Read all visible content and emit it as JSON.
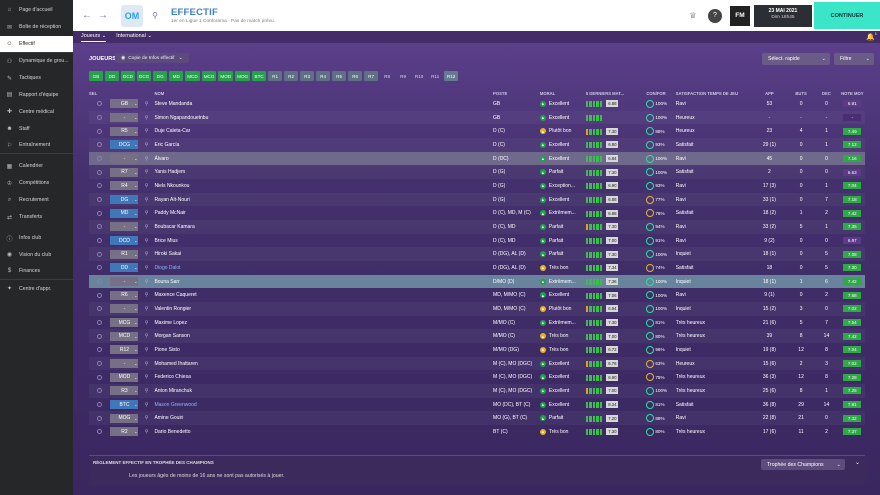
{
  "sidebar": {
    "items": [
      {
        "label": "Page d'accueil",
        "icon": "home-icon"
      },
      {
        "label": "Boîte de réception",
        "icon": "inbox-icon"
      },
      {
        "label": "Effectif",
        "icon": "squad-icon",
        "active": true
      },
      {
        "label": "Dynamique de grou...",
        "icon": "dynamics-icon"
      },
      {
        "label": "Tactiques",
        "icon": "tactics-icon"
      },
      {
        "label": "Rapport d'équipe",
        "icon": "report-icon"
      },
      {
        "label": "Centre médical",
        "icon": "medical-icon"
      },
      {
        "label": "Staff",
        "icon": "staff-icon"
      },
      {
        "label": "Entraînement",
        "icon": "training-icon"
      },
      {
        "label": "Calendrier",
        "icon": "calendar-icon"
      },
      {
        "label": "Compétitions",
        "icon": "trophy-icon"
      },
      {
        "label": "Recrutement",
        "icon": "scouting-icon"
      },
      {
        "label": "Transferts",
        "icon": "transfer-icon"
      },
      {
        "label": "Infos club",
        "icon": "club-info-icon"
      },
      {
        "label": "Vision du club",
        "icon": "vision-icon"
      },
      {
        "label": "Finances",
        "icon": "finance-icon"
      },
      {
        "label": "Centre d'appr.",
        "icon": "development-icon"
      }
    ]
  },
  "header": {
    "title": "EFFECTIF",
    "subtitle": "1er en Ligue 1 Conforama - Pas de match prévu.",
    "club_badge": "OM",
    "fm_logo": "FM",
    "date": "23 MAI 2021",
    "time": "Dim 18h45",
    "continue": "CONTINUER"
  },
  "tabs": [
    {
      "label": "Joueurs",
      "active": true
    },
    {
      "label": "International",
      "active": false
    }
  ],
  "notifications": {
    "count": "1"
  },
  "toolbar": {
    "players_label": "JOUEURS",
    "copy_label": "Copie de Infos effectif",
    "quick_select": "Sélect. rapide",
    "filter": "Filtre"
  },
  "position_filters": [
    "GB",
    "DD",
    "DCD",
    "DCG",
    "DG",
    "MD",
    "MCD",
    "MCG",
    "MOD",
    "MOG",
    "BTC",
    "R1",
    "R2",
    "R3",
    "R4",
    "R5",
    "R6",
    "R7",
    "R8",
    "R9",
    "R10",
    "R11",
    "R12"
  ],
  "columns": {
    "sel": "SEL",
    "nom": "NOM",
    "poste": "POSTE",
    "moral": "MORAL",
    "form": "5 DERNIERS MAT...",
    "cond": "CON/FOR",
    "sat": "SATISFACTION TEMPS DE JEU",
    "app": "APP",
    "buts": "BUTS",
    "dec": "DEC",
    "note": "NOTE MOY"
  },
  "players": [
    {
      "pos": "GB",
      "name": "Steve Mandanda",
      "poste": "GB",
      "moral": "Excellent",
      "form": "6.88",
      "cond": "100%",
      "sat": "Ravi",
      "app": "53",
      "buts": "0",
      "dec": "0",
      "note": "6.91"
    },
    {
      "pos": "-",
      "name": "Simon Ngapandouetnbu",
      "poste": "GB",
      "moral": "Excellent",
      "form": "",
      "cond": "100%",
      "sat": "Heureux",
      "app": "-",
      "buts": "-",
      "dec": "-",
      "note": "-"
    },
    {
      "pos": "R5",
      "name": "Duje Caleta-Car",
      "poste": "D (C)",
      "moral": "Plutôt bon",
      "form": "7.30",
      "cond": "88%",
      "sat": "Heureux",
      "app": "23",
      "buts": "4",
      "dec": "1",
      "note": "7.49"
    },
    {
      "pos": "DCG",
      "name": "Eric García",
      "poste": "D (C)",
      "moral": "Excellent",
      "form": "6.90",
      "cond": "93%",
      "sat": "Satisfait",
      "app": "29 (1)",
      "buts": "0",
      "dec": "1",
      "note": "7.12"
    },
    {
      "pos": "-",
      "name": "Álvaro",
      "poste": "D (DC)",
      "moral": "Excellent",
      "form": "6.84",
      "cond": "100%",
      "sat": "Ravi",
      "app": "45",
      "buts": "0",
      "dec": "0",
      "note": "7.16"
    },
    {
      "pos": "R7",
      "name": "Yanis Hadjem",
      "poste": "D (G)",
      "moral": "Parfait",
      "form": "7.30",
      "cond": "100%",
      "sat": "Satisfait",
      "app": "2",
      "buts": "0",
      "dec": "0",
      "note": "6.63"
    },
    {
      "pos": "R4",
      "name": "Niels Nkounkou",
      "poste": "D (G)",
      "moral": "Exception...",
      "form": "6.90",
      "cond": "93%",
      "sat": "Ravi",
      "app": "17 (3)",
      "buts": "0",
      "dec": "1",
      "note": "7.04"
    },
    {
      "pos": "DG",
      "name": "Rayan Aït-Nouri",
      "poste": "D (G)",
      "moral": "Excellent",
      "form": "6.88",
      "cond": "77%",
      "sat": "Ravi",
      "app": "33 (1)",
      "buts": "0",
      "dec": "7",
      "note": "7.18"
    },
    {
      "pos": "MD",
      "name": "Paddy McNair",
      "poste": "D (C), MD, M (C)",
      "moral": "Extrêmem...",
      "form": "6.88",
      "cond": "78%",
      "sat": "Satisfait",
      "app": "18 (2)",
      "buts": "1",
      "dec": "2",
      "note": "7.42"
    },
    {
      "pos": "-",
      "name": "Boubacar Kamara",
      "poste": "D (C), MD",
      "moral": "Parfait",
      "form": "7.30",
      "cond": "94%",
      "sat": "Ravi",
      "app": "33 (2)",
      "buts": "5",
      "dec": "1",
      "note": "7.35"
    },
    {
      "pos": "DCD",
      "name": "Brice Mius",
      "poste": "D (C), MD",
      "moral": "Parfait",
      "form": "7.00",
      "cond": "91%",
      "sat": "Ravi",
      "app": "9 (2)",
      "buts": "0",
      "dec": "0",
      "note": "6.97"
    },
    {
      "pos": "R1",
      "name": "Hiroki Sakai",
      "poste": "D (DG), AL (D)",
      "moral": "Parfait",
      "form": "7.30",
      "cond": "100%",
      "sat": "Inquiet",
      "app": "18 (1)",
      "buts": "0",
      "dec": "5",
      "note": "7.08"
    },
    {
      "pos": "DD",
      "name": "Diogo Dalot",
      "poste": "D (DG), AL (D)",
      "moral": "Très bon",
      "form": "7.34",
      "cond": "74%",
      "sat": "Satisfait",
      "app": "18",
      "buts": "0",
      "dec": "5",
      "note": "7.30",
      "blue": true
    },
    {
      "pos": "-",
      "name": "Bouna Sarr",
      "poste": "D/MO (D)",
      "moral": "Extrêmem...",
      "form": "7.36",
      "cond": "100%",
      "sat": "Inquiet",
      "app": "18 (1)",
      "buts": "1",
      "dec": "6",
      "note": "7.42"
    },
    {
      "pos": "R6",
      "name": "Maxence Caqueret",
      "poste": "MD, M/MO (C)",
      "moral": "Excellent",
      "form": "7.06",
      "cond": "100%",
      "sat": "Ravi",
      "app": "9 (1)",
      "buts": "0",
      "dec": "2",
      "note": "7.58"
    },
    {
      "pos": "-",
      "name": "Valentin Rongier",
      "poste": "MD, M/MO (C)",
      "moral": "Plutôt bon",
      "form": "6.94",
      "cond": "100%",
      "sat": "Inquiet",
      "app": "15 (2)",
      "buts": "3",
      "dec": "0",
      "note": "7.02"
    },
    {
      "pos": "MCG",
      "name": "Maxime Lopez",
      "poste": "M/MO (C)",
      "moral": "Extrêmem...",
      "form": "7.30",
      "cond": "81%",
      "sat": "Très heureux",
      "app": "21 (6)",
      "buts": "5",
      "dec": "7",
      "note": "7.54"
    },
    {
      "pos": "MCD",
      "name": "Morgan Sanson",
      "poste": "M/MO (C)",
      "moral": "Très bon",
      "form": "7.00",
      "cond": "80%",
      "sat": "Très heureux",
      "app": "39",
      "buts": "8",
      "dec": "14",
      "note": "7.42"
    },
    {
      "pos": "R12",
      "name": "Pione Sisto",
      "poste": "M/MO (DG)",
      "moral": "Très bon",
      "form": "6.72",
      "cond": "96%",
      "sat": "Inquiet",
      "app": "19 (8)",
      "buts": "12",
      "dec": "8",
      "note": "7.04"
    },
    {
      "pos": "-",
      "name": "Mohamed Ihattaren",
      "poste": "M (C), MO (DGC)",
      "moral": "Excellent",
      "form": "6.76",
      "cond": "63%",
      "sat": "Heureux",
      "app": "15 (6)",
      "buts": "2",
      "dec": "3",
      "note": "7.02"
    },
    {
      "pos": "MOD",
      "name": "Federico Chiesa",
      "poste": "M (C), MO (DGC)",
      "moral": "Excellent",
      "form": "6.90",
      "cond": "75%",
      "sat": "Très heureux",
      "app": "36 (3)",
      "buts": "12",
      "dec": "8",
      "note": "7.28"
    },
    {
      "pos": "R3",
      "name": "Anton Miranchuk",
      "poste": "M (C), MO (DGC)",
      "moral": "Excellent",
      "form": "7.00",
      "cond": "100%",
      "sat": "Très heureux",
      "app": "25 (6)",
      "buts": "8",
      "dec": "1",
      "note": "7.25"
    },
    {
      "pos": "BTC",
      "name": "Mason Greenwood",
      "poste": "MO (DC), BT (C)",
      "moral": "Excellent",
      "form": "8.24",
      "cond": "81%",
      "sat": "Satisfait",
      "app": "36 (8)",
      "buts": "29",
      "dec": "14",
      "note": "7.81",
      "blue": true
    },
    {
      "pos": "MOG",
      "name": "Amine Gouiri",
      "poste": "MO (G), BT (C)",
      "moral": "Parfait",
      "form": "7.20",
      "cond": "88%",
      "sat": "Ravi",
      "app": "22 (8)",
      "buts": "21",
      "dec": "0",
      "note": "7.32"
    },
    {
      "pos": "R2",
      "name": "Dario Benedetto",
      "poste": "BT (C)",
      "moral": "Très bon",
      "form": "7.30",
      "cond": "80%",
      "sat": "Très heureux",
      "app": "17 (6)",
      "buts": "11",
      "dec": "2",
      "note": "7.37"
    }
  ],
  "rule": {
    "title": "RÈGLEMENT EFFECTIF EN TROPHÉE DES CHAMPIONS",
    "text": "Les joueurs âgés de moins de 16 ans ne sont pas autorisés à jouer.",
    "competition": "Trophée des Champions"
  }
}
